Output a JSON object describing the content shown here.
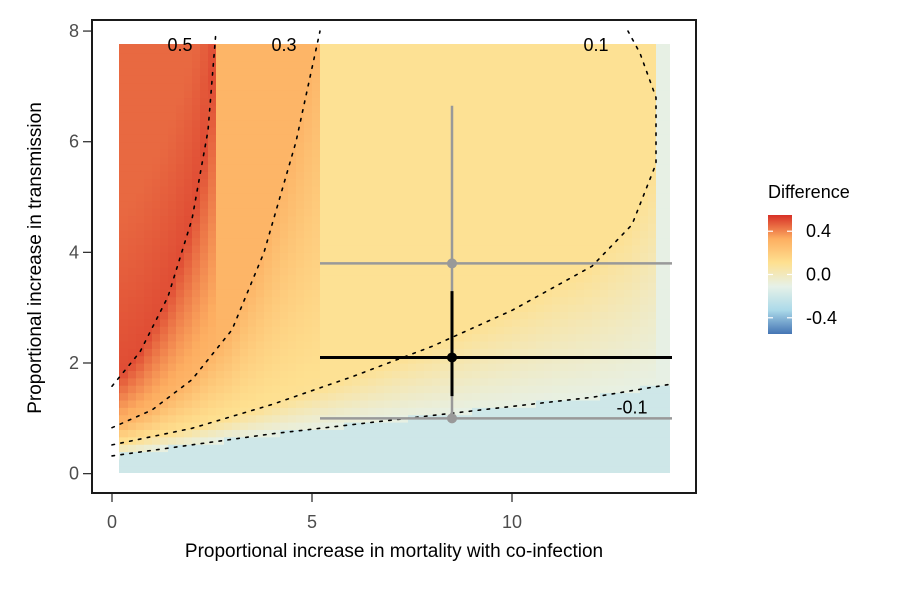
{
  "chart_data": {
    "type": "heatmap",
    "xlabel": "Proportional increase in mortality with co-infection",
    "ylabel": "Proportional increase in transmission",
    "xlim": [
      -0.5,
      14.6
    ],
    "ylim": [
      -0.35,
      8.2
    ],
    "x_ticks": [
      0,
      5,
      10
    ],
    "x_tick_labels": [
      "0",
      "5",
      "10"
    ],
    "y_ticks": [
      0,
      2,
      4,
      6,
      8
    ],
    "y_tick_labels": [
      "0",
      "2",
      "4",
      "6",
      "8"
    ],
    "grid": false,
    "legend": {
      "title": "Difference",
      "position": "right",
      "range": [
        -0.55,
        0.55
      ],
      "breaks": [
        0.4,
        0.0,
        -0.4
      ],
      "labels": [
        "0.4",
        "0.0",
        "-0.4"
      ],
      "colors": [
        "#d73027",
        "#fdae61",
        "#fee090",
        "#e6f1e8",
        "#abd9e9",
        "#4575b4"
      ]
    },
    "contours": [
      {
        "label": "0.5",
        "points": [
          [
            0.0,
            1.58
          ],
          [
            0.7,
            2.2
          ],
          [
            1.4,
            3.2
          ],
          [
            2.0,
            4.6
          ],
          [
            2.4,
            6.2
          ],
          [
            2.6,
            8.0
          ]
        ]
      },
      {
        "label": "0.3",
        "points": [
          [
            0.0,
            0.83
          ],
          [
            1.0,
            1.15
          ],
          [
            2.0,
            1.7
          ],
          [
            3.0,
            2.6
          ],
          [
            3.8,
            4.0
          ],
          [
            4.6,
            6.0
          ],
          [
            5.2,
            8.0
          ]
        ]
      },
      {
        "label": "0.1",
        "points": [
          [
            0.0,
            0.52
          ],
          [
            2.0,
            0.82
          ],
          [
            4.0,
            1.25
          ],
          [
            6.0,
            1.75
          ],
          [
            8.0,
            2.3
          ],
          [
            10.0,
            2.95
          ],
          [
            12.0,
            3.75
          ],
          [
            13.0,
            4.5
          ],
          [
            13.6,
            5.6
          ],
          [
            13.6,
            6.8
          ],
          [
            13.2,
            7.6
          ],
          [
            12.9,
            8.0
          ]
        ]
      },
      {
        "label": "-0.1",
        "points": [
          [
            0.0,
            0.32
          ],
          [
            4.0,
            0.72
          ],
          [
            8.0,
            1.05
          ],
          [
            12.0,
            1.38
          ],
          [
            14.0,
            1.62
          ]
        ]
      }
    ],
    "series": [
      {
        "x": 8.5,
        "y": 3.8,
        "x_err": [
          5.2,
          14.0
        ],
        "y_err": [
          1.0,
          6.65
        ],
        "color": "#999999"
      },
      {
        "x": 8.5,
        "y": 1.0,
        "x_err": [
          5.2,
          14.0
        ],
        "color": "#999999"
      },
      {
        "x": 8.5,
        "y": 2.1,
        "x_err": [
          5.2,
          14.0
        ],
        "y_err": [
          1.4,
          3.3
        ],
        "color": "#000000"
      }
    ]
  }
}
